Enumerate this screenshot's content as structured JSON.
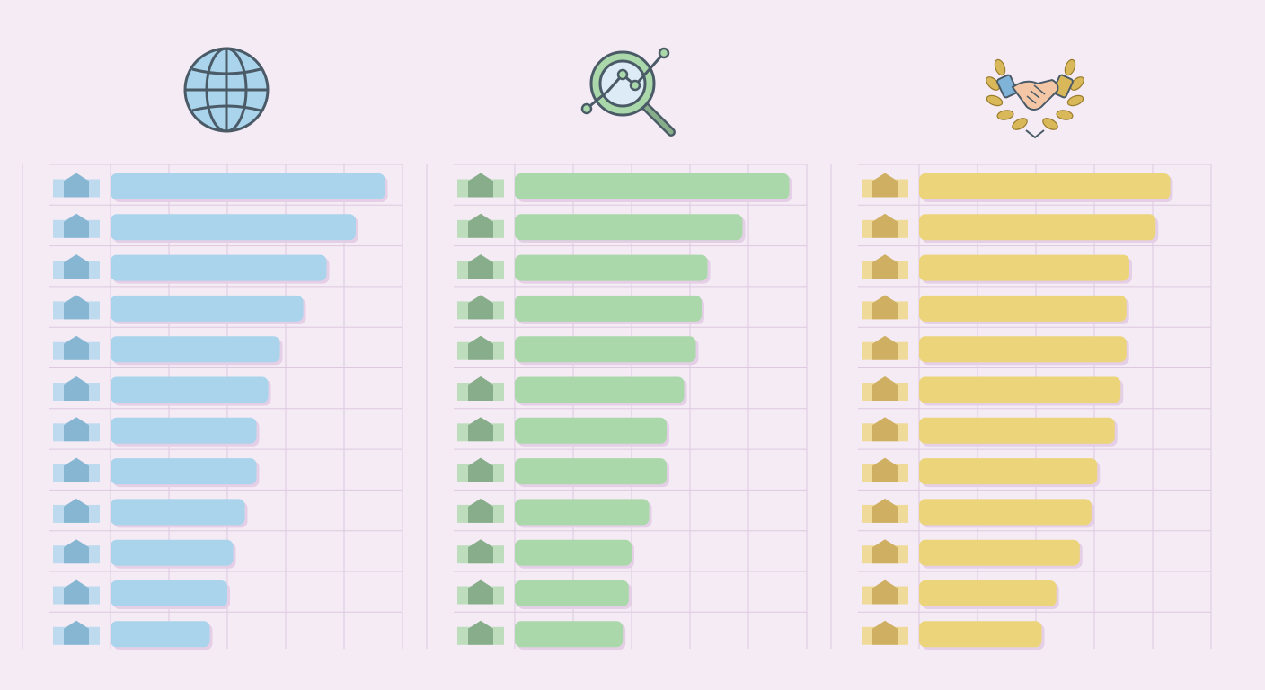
{
  "colors": {
    "background": "#f5ebf5",
    "grid": "#dcc9df",
    "shadow": "#e4cfe6"
  },
  "panels": [
    {
      "icon": "globe-icon",
      "bar_color": "#a9d4ec",
      "marker_color": "#86b6d2"
    },
    {
      "icon": "magnifier-chart-icon",
      "bar_color": "#aad8aa",
      "marker_color": "#88ad8a"
    },
    {
      "icon": "handshake-laurel-icon",
      "bar_color": "#ecd47a",
      "marker_color": "#cfb063"
    }
  ],
  "chart_data": [
    {
      "type": "bar",
      "orientation": "horizontal",
      "categories": [
        "",
        "",
        "",
        "",
        "",
        "",
        "",
        "",
        "",
        "",
        "",
        ""
      ],
      "values": [
        4.7,
        4.2,
        3.7,
        3.3,
        2.9,
        2.7,
        2.5,
        2.5,
        2.3,
        2.1,
        2.0,
        1.7
      ],
      "xlim": [
        0,
        5
      ],
      "grid": true,
      "legend": "none"
    },
    {
      "type": "bar",
      "orientation": "horizontal",
      "categories": [
        "",
        "",
        "",
        "",
        "",
        "",
        "",
        "",
        "",
        "",
        "",
        ""
      ],
      "values": [
        4.7,
        3.9,
        3.3,
        3.2,
        3.1,
        2.9,
        2.6,
        2.6,
        2.3,
        2.0,
        1.95,
        1.85
      ],
      "xlim": [
        0,
        5
      ],
      "grid": true,
      "legend": "none"
    },
    {
      "type": "bar",
      "orientation": "horizontal",
      "categories": [
        "",
        "",
        "",
        "",
        "",
        "",
        "",
        "",
        "",
        "",
        "",
        ""
      ],
      "values": [
        4.3,
        4.05,
        3.6,
        3.55,
        3.55,
        3.45,
        3.35,
        3.05,
        2.95,
        2.75,
        2.35,
        2.1
      ],
      "xlim": [
        0,
        5
      ],
      "grid": true,
      "legend": "none"
    }
  ]
}
